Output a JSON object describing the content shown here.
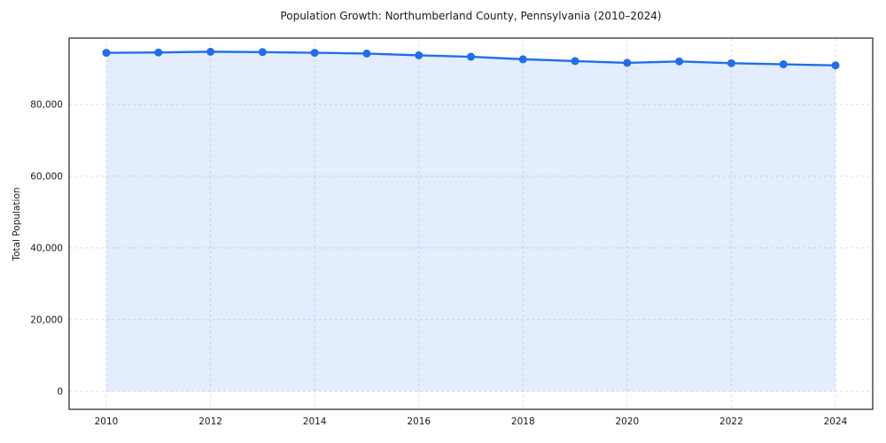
{
  "chart_data": {
    "type": "line",
    "title": "Population Growth: Northumberland County, Pennsylvania (2010–2024)",
    "xlabel": "",
    "ylabel": "Total Population",
    "x": [
      2010,
      2011,
      2012,
      2013,
      2014,
      2015,
      2016,
      2017,
      2018,
      2019,
      2020,
      2021,
      2022,
      2023,
      2024
    ],
    "series": [
      {
        "name": "Total Population",
        "values": [
          94400,
          94500,
          94700,
          94600,
          94400,
          94200,
          93700,
          93300,
          92600,
          92100,
          91600,
          92000,
          91500,
          91200,
          90900
        ]
      }
    ],
    "xticks": [
      2010,
      2012,
      2014,
      2016,
      2018,
      2020,
      2022,
      2024
    ],
    "yticks": [
      0,
      20000,
      40000,
      60000,
      80000
    ],
    "ylim": [
      -5000,
      98500
    ],
    "grid": true,
    "grid_style": "dashed",
    "grid_color": "#dcdfe4",
    "spine_color": "#222222",
    "legend": false,
    "line_color": "#1f6feb",
    "fill_color": "#1f6feb",
    "fill_opacity": 0.12,
    "marker": "circle",
    "marker_radius": 4.5,
    "line_width": 2.4
  }
}
